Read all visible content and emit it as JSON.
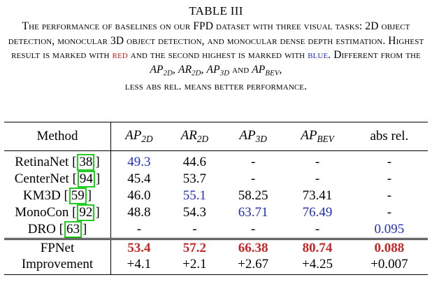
{
  "table_label": "TABLE III",
  "caption": {
    "text_1": "The performance of baselines on our FPD dataset with three visual tasks: 2D object detection, monocular 3D object detection, and monocular dense depth estimation. Highest result is marked with ",
    "red_word": "red",
    "text_2": " and the second highest is marked with ",
    "blue_word": "blue",
    "text_3": ". Different from the ",
    "m1_base": "AP",
    "m1_sub": "2D",
    "sep1": ", ",
    "m2_base": "AR",
    "m2_sub": "2D",
    "sep2": ", ",
    "m3_base": "AP",
    "m3_sub": "3D",
    "sep3": " and ",
    "m4_base": "AP",
    "m4_sub": "BEV",
    "text_4": ",",
    "text_5": "less abs rel. means better performance."
  },
  "columns": {
    "method": "Method",
    "ap2d_base": "AP",
    "ap2d_sub": "2D",
    "ar2d_base": "AR",
    "ar2d_sub": "2D",
    "ap3d_base": "AP",
    "ap3d_sub": "3D",
    "apbev_base": "AP",
    "apbev_sub": "BEV",
    "absrel": "abs rel."
  },
  "rows": [
    {
      "method": "RetinaNet",
      "cite": "38",
      "ap2d": "49.3",
      "ar2d": "44.6",
      "ap3d": "-",
      "apbev": "-",
      "absrel": "-"
    },
    {
      "method": "CenterNet",
      "cite": "94",
      "ap2d": "45.4",
      "ar2d": "53.7",
      "ap3d": "-",
      "apbev": "-",
      "absrel": "-"
    },
    {
      "method": "KM3D",
      "cite": "59",
      "ap2d": "46.0",
      "ar2d": "55.1",
      "ap3d": "58.25",
      "apbev": "73.41",
      "absrel": "-"
    },
    {
      "method": "MonoCon",
      "cite": "92",
      "ap2d": "48.8",
      "ar2d": "54.3",
      "ap3d": "63.71",
      "apbev": "76.49",
      "absrel": "-"
    },
    {
      "method": "DRO",
      "cite": "63",
      "ap2d": "-",
      "ar2d": "-",
      "ap3d": "-",
      "apbev": "-",
      "absrel": "0.095"
    }
  ],
  "ours": {
    "method": "FPNet",
    "ap2d": "53.4",
    "ar2d": "57.2",
    "ap3d": "66.38",
    "apbev": "80.74",
    "absrel": "0.088"
  },
  "improvement": {
    "method": "Improvement",
    "ap2d": "+4.1",
    "ar2d": "+2.1",
    "ap3d": "+2.67",
    "apbev": "+4.25",
    "absrel": "+0.007"
  },
  "colors": {
    "highest": "#c62828",
    "second": "#1f2fb8",
    "citation_box": "#22cc22"
  }
}
